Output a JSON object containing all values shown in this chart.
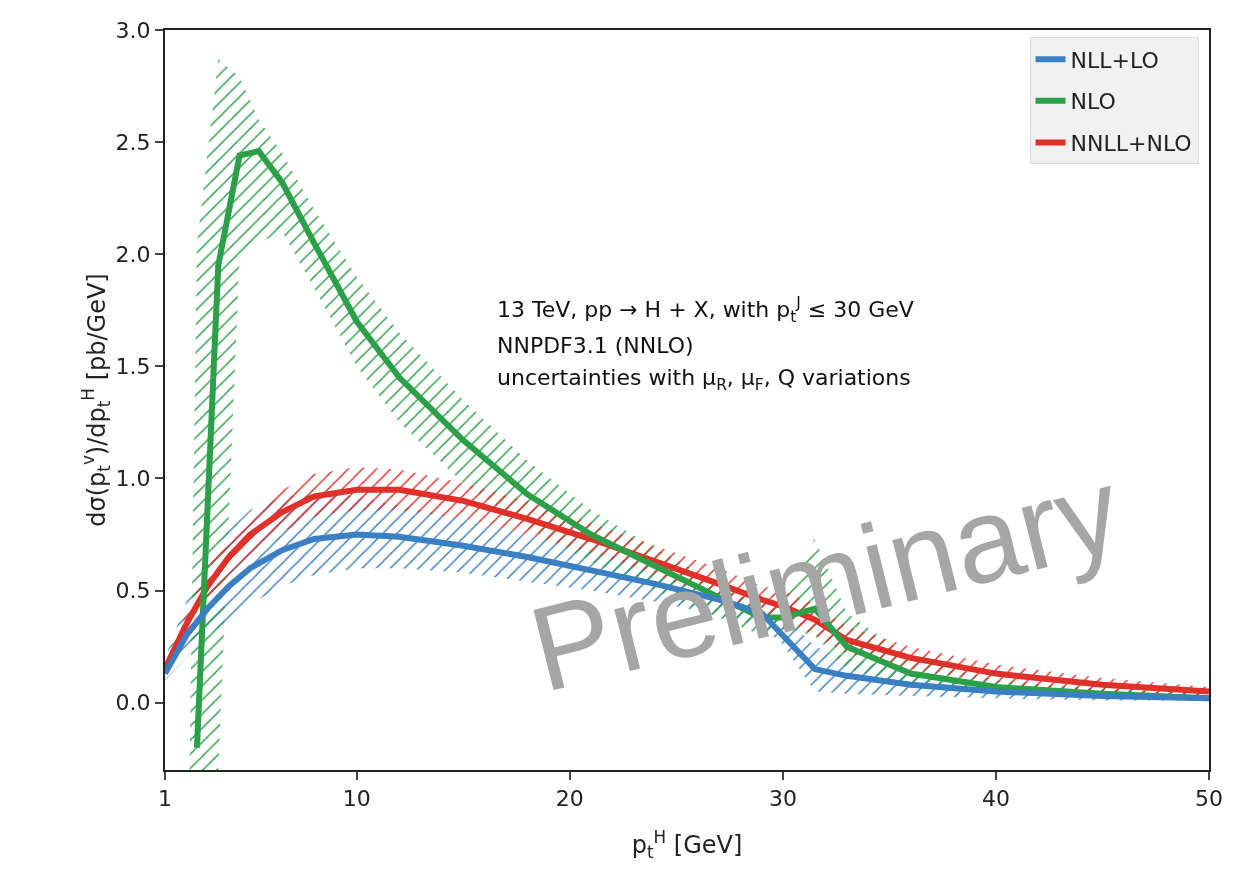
{
  "chart_data": {
    "type": "line",
    "xlabel": "p$_{t}$$^{H}$ [GeV]",
    "ylabel": "dσ(p$_{t}$$^{v}$)/dp$_{t}$$^{H}$ [pb/GeV]",
    "xlim": [
      1,
      50
    ],
    "xticks": [
      1,
      10,
      20,
      30,
      40,
      50
    ],
    "ylim": [
      -0.3,
      3.0
    ],
    "yticks": [
      {
        "value": 0,
        "label": "0.0"
      },
      {
        "value": 0.5,
        "label": "0.5"
      },
      {
        "value": 1,
        "label": "1.0"
      },
      {
        "value": 1.5,
        "label": "1.5"
      },
      {
        "value": 2,
        "label": "2.0"
      },
      {
        "value": 2.5,
        "label": "2.5"
      },
      {
        "value": 3,
        "label": "3.0"
      }
    ],
    "grid": false,
    "legend": "top right",
    "marker": "none",
    "line_style": "solid",
    "series": [
      {
        "name": "NLL+LO",
        "color": "#3a7fc1",
        "x": [
          1,
          2,
          3,
          4,
          5,
          6.5,
          8,
          10,
          12,
          15,
          18,
          21,
          24,
          27,
          29,
          30,
          31.5,
          33,
          36,
          40,
          45,
          50
        ],
        "values": [
          0.13,
          0.3,
          0.42,
          0.52,
          0.6,
          0.68,
          0.73,
          0.75,
          0.74,
          0.7,
          0.65,
          0.59,
          0.53,
          0.46,
          0.4,
          0.3,
          0.15,
          0.12,
          0.08,
          0.05,
          0.03,
          0.02
        ],
        "lower": [
          0.1,
          0.2,
          0.3,
          0.37,
          0.44,
          0.52,
          0.57,
          0.6,
          0.6,
          0.58,
          0.54,
          0.5,
          0.45,
          0.39,
          0.34,
          0.26,
          0.05,
          0.04,
          0.03,
          0.02,
          0.01,
          0.01
        ],
        "upper": [
          0.2,
          0.45,
          0.63,
          0.77,
          0.86,
          0.92,
          0.93,
          0.92,
          0.88,
          0.82,
          0.75,
          0.68,
          0.6,
          0.5,
          0.45,
          0.4,
          0.25,
          0.2,
          0.14,
          0.09,
          0.06,
          0.04
        ]
      },
      {
        "name": "NLO",
        "color": "#2ca048",
        "x": [
          2.15,
          2.5,
          3.5,
          4.5,
          5.4,
          6.5,
          8,
          10,
          12,
          15,
          18,
          21,
          24,
          27,
          29,
          30,
          31.5,
          33,
          36,
          40,
          45,
          50
        ],
        "values": [
          null,
          -0.2,
          1.95,
          2.44,
          2.46,
          2.32,
          2.05,
          1.7,
          1.45,
          1.17,
          0.93,
          0.75,
          0.61,
          0.47,
          0.38,
          0.38,
          0.42,
          0.25,
          0.13,
          0.07,
          0.04,
          0.02
        ],
        "lower": [
          -0.3,
          -0.3,
          -0.3,
          1.99,
          2.05,
          2.1,
          1.85,
          1.5,
          1.25,
          0.98,
          0.78,
          0.63,
          0.5,
          0.38,
          0.3,
          0.33,
          0.3,
          0.15,
          0.08,
          0.04,
          0.02,
          0.01
        ],
        "upper": [
          -0.3,
          2.04,
          2.87,
          2.79,
          2.6,
          2.45,
          2.2,
          1.9,
          1.65,
          1.35,
          1.08,
          0.86,
          0.69,
          0.53,
          0.42,
          0.45,
          0.73,
          0.4,
          0.2,
          0.1,
          0.06,
          0.04
        ]
      },
      {
        "name": "NNLL+NLO",
        "color": "#e0302a",
        "x": [
          1,
          2,
          3,
          4,
          5,
          6.5,
          8,
          10,
          12,
          15,
          18,
          21,
          24,
          27,
          29,
          30,
          31.5,
          33,
          36,
          40,
          45,
          50
        ],
        "values": [
          0.15,
          0.35,
          0.52,
          0.65,
          0.75,
          0.85,
          0.92,
          0.95,
          0.95,
          0.9,
          0.82,
          0.73,
          0.63,
          0.53,
          0.46,
          0.43,
          0.37,
          0.28,
          0.2,
          0.13,
          0.08,
          0.05
        ],
        "lower": [
          0.13,
          0.31,
          0.46,
          0.57,
          0.66,
          0.76,
          0.83,
          0.86,
          0.86,
          0.82,
          0.75,
          0.67,
          0.57,
          0.47,
          0.4,
          0.37,
          0.3,
          0.22,
          0.15,
          0.09,
          0.05,
          0.03
        ],
        "upper": [
          0.17,
          0.4,
          0.6,
          0.74,
          0.85,
          0.95,
          1.02,
          1.05,
          1.04,
          0.98,
          0.9,
          0.8,
          0.7,
          0.6,
          0.52,
          0.5,
          0.44,
          0.34,
          0.25,
          0.17,
          0.11,
          0.07
        ]
      }
    ],
    "annotations": [
      "13 TeV, pp → H + X, with p$_{t}$$^{J}$ ≤ 30 GeV",
      "NNPDF3.1 (NNLO)",
      "uncertainties with μ$_{R}$, μ$_{F}$, Q variations",
      "Preliminary"
    ]
  }
}
